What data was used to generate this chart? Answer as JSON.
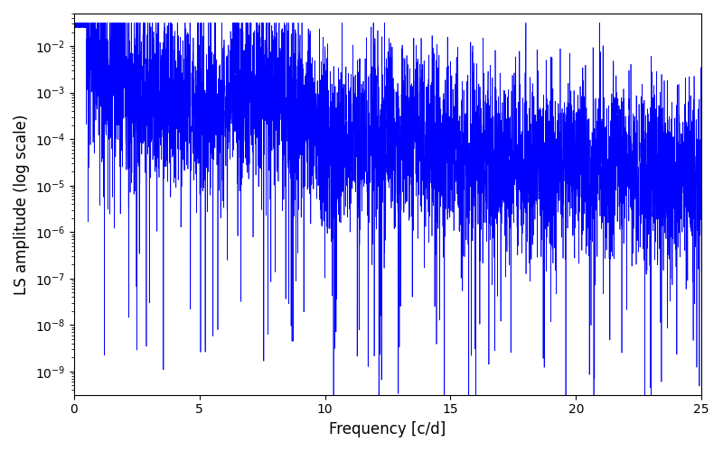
{
  "xlabel": "Frequency [c/d]",
  "ylabel": "LS amplitude (log scale)",
  "line_color": "#0000ff",
  "xlim": [
    0,
    25
  ],
  "ylim_log_min": -9.5,
  "ylim_log_max": -1.3,
  "background_color": "#ffffff",
  "figsize": [
    8.0,
    5.0
  ],
  "dpi": 100,
  "seed": 12345,
  "n_points": 5000,
  "freq_max": 25.0
}
